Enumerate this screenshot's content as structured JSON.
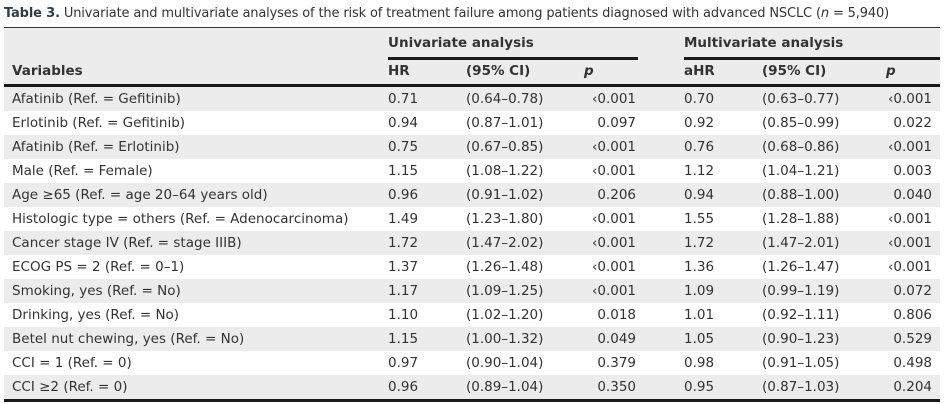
{
  "caption": {
    "label": "Table 3.",
    "text_before_n": "Univariate and multivariate analyses of the risk of treatment failure among patients diagnosed with advanced NSCLC (",
    "n_symbol": "n",
    "text_after_n": " = 5,940)"
  },
  "header": {
    "groups": [
      "Univariate analysis",
      "Multivariate analysis"
    ],
    "columns": [
      "Variables",
      "HR",
      "(95% CI)",
      "p",
      "aHR",
      "(95% CI)",
      "p"
    ]
  },
  "rows": [
    {
      "variable": "Afatinib (Ref. = Gefitinib)",
      "hr": "0.71",
      "ci": "(0.64–0.78)",
      "p": "‹0.001",
      "ahr": "0.70",
      "aci": "(0.63–0.77)",
      "ap": "‹0.001"
    },
    {
      "variable": "Erlotinib (Ref. = Gefitinib)",
      "hr": "0.94",
      "ci": "(0.87–1.01)",
      "p": "0.097",
      "ahr": "0.92",
      "aci": "(0.85–0.99)",
      "ap": "0.022"
    },
    {
      "variable": "Afatinib (Ref. = Erlotinib)",
      "hr": "0.75",
      "ci": "(0.67–0.85)",
      "p": "‹0.001",
      "ahr": "0.76",
      "aci": "(0.68–0.86)",
      "ap": "‹0.001"
    },
    {
      "variable": "Male (Ref. = Female)",
      "hr": "1.15",
      "ci": "(1.08–1.22)",
      "p": "‹0.001",
      "ahr": "1.12",
      "aci": "(1.04–1.21)",
      "ap": "0.003"
    },
    {
      "variable": "Age ≥65 (Ref. = age 20–64 years old)",
      "hr": "0.96",
      "ci": "(0.91–1.02)",
      "p": "0.206",
      "ahr": "0.94",
      "aci": "(0.88–1.00)",
      "ap": "0.040"
    },
    {
      "variable": "Histologic type = others (Ref. = Adenocarcinoma)",
      "hr": "1.49",
      "ci": "(1.23–1.80)",
      "p": "‹0.001",
      "ahr": "1.55",
      "aci": "(1.28–1.88)",
      "ap": "‹0.001"
    },
    {
      "variable": "Cancer stage IV (Ref. = stage IIIB)",
      "hr": "1.72",
      "ci": "(1.47–2.02)",
      "p": "‹0.001",
      "ahr": "1.72",
      "aci": "(1.47–2.01)",
      "ap": "‹0.001"
    },
    {
      "variable": "ECOG PS = 2 (Ref. = 0–1)",
      "hr": "1.37",
      "ci": "(1.26–1.48)",
      "p": "‹0.001",
      "ahr": "1.36",
      "aci": "(1.26–1.47)",
      "ap": "‹0.001"
    },
    {
      "variable": "Smoking, yes (Ref. = No)",
      "hr": "1.17",
      "ci": "(1.09–1.25)",
      "p": "‹0.001",
      "ahr": "1.09",
      "aci": "(0.99–1.19)",
      "ap": "0.072"
    },
    {
      "variable": "Drinking, yes (Ref. = No)",
      "hr": "1.10",
      "ci": "(1.02–1.20)",
      "p": "0.018",
      "ahr": "1.01",
      "aci": "(0.92–1.11)",
      "ap": "0.806"
    },
    {
      "variable": "Betel nut chewing, yes (Ref. = No)",
      "hr": "1.15",
      "ci": "(1.00–1.32)",
      "p": "0.049",
      "ahr": "1.05",
      "aci": "(0.90–1.23)",
      "ap": "0.529"
    },
    {
      "variable": "CCI = 1 (Ref. = 0)",
      "hr": "0.97",
      "ci": "(0.90–1.04)",
      "p": "0.379",
      "ahr": "0.98",
      "aci": "(0.91–1.05)",
      "ap": "0.498"
    },
    {
      "variable": "CCI ≥2 (Ref. = 0)",
      "hr": "0.96",
      "ci": "(0.89–1.04)",
      "p": "0.350",
      "ahr": "0.95",
      "aci": "(0.87–1.03)",
      "ap": "0.204"
    }
  ],
  "colors": {
    "stripe": "#ececec",
    "rule": "#1a1a1a",
    "label": "#2f3e4a"
  }
}
